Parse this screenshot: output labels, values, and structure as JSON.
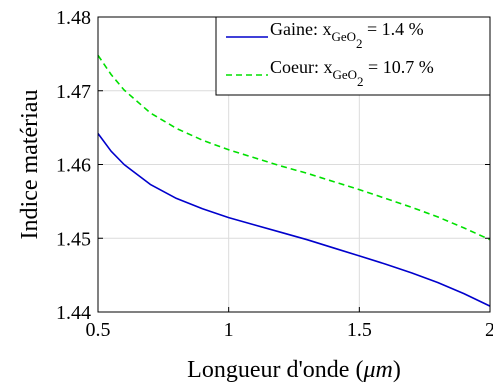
{
  "chart_data": {
    "type": "line",
    "xlabel": "Longueur d'onde (",
    "xlabel_unit": "μm",
    "xlabel_close": ")",
    "ylabel": "Indice matériau",
    "xlim": [
      0.5,
      2
    ],
    "ylim": [
      1.44,
      1.48
    ],
    "xticks": [
      0.5,
      1,
      1.5,
      2
    ],
    "yticks": [
      1.44,
      1.45,
      1.46,
      1.47,
      1.48
    ],
    "xtick_labels": [
      "0.5",
      "1",
      "1.5",
      "2"
    ],
    "ytick_labels": [
      "1.44",
      "1.45",
      "1.46",
      "1.47",
      "1.48"
    ],
    "grid": true,
    "legend_position": "top-right",
    "series": [
      {
        "legend_prefix": "Gaine: x",
        "legend_subscript": "GeO",
        "legend_sub_index": "2",
        "legend_suffix": " = 1.4 %",
        "color": "#0000cc",
        "style": "solid",
        "x": [
          0.5,
          0.55,
          0.6,
          0.7,
          0.8,
          0.9,
          1.0,
          1.1,
          1.2,
          1.3,
          1.4,
          1.5,
          1.6,
          1.7,
          1.8,
          1.9,
          2.0
        ],
        "y": [
          1.4642,
          1.4618,
          1.46,
          1.4573,
          1.4554,
          1.454,
          1.4528,
          1.4518,
          1.4508,
          1.4498,
          1.4487,
          1.4476,
          1.4465,
          1.4453,
          1.444,
          1.4425,
          1.4408
        ]
      },
      {
        "legend_prefix": "Coeur: x",
        "legend_subscript": "GeO",
        "legend_sub_index": "2",
        "legend_suffix": " = 10.7 %",
        "color": "#00e000",
        "style": "dashed",
        "x": [
          0.5,
          0.55,
          0.6,
          0.7,
          0.8,
          0.9,
          1.0,
          1.1,
          1.2,
          1.3,
          1.4,
          1.5,
          1.6,
          1.7,
          1.8,
          1.9,
          2.0
        ],
        "y": [
          1.4748,
          1.4722,
          1.4701,
          1.467,
          1.4649,
          1.4633,
          1.462,
          1.4609,
          1.4598,
          1.4588,
          1.4577,
          1.4566,
          1.4554,
          1.4542,
          1.4529,
          1.4514,
          1.4498
        ]
      }
    ]
  }
}
